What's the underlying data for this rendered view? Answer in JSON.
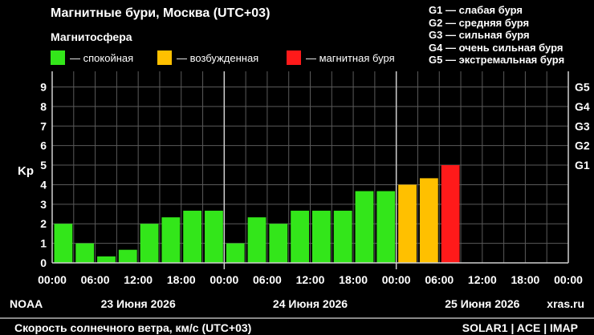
{
  "header": {
    "title": "Магнитные бури, Москва (UTC+03)",
    "subtitle": "Магнитосфера"
  },
  "legend": [
    {
      "label": "— спокойная",
      "color": "#33e61a"
    },
    {
      "label": "— возбужденная",
      "color": "#ffc000"
    },
    {
      "label": "— магнитная буря",
      "color": "#ff1a1a"
    }
  ],
  "storm_scale": [
    "G1 — слабая буря",
    "G2 — средняя буря",
    "G3 — сильная буря",
    "G4 — очень сильная буря",
    "G5 — экстремальная буря"
  ],
  "footer": {
    "left": "NOAA",
    "right": "xras.ru",
    "bottom_title": "Скорость солнечного ветра, км/с (UTC+03)",
    "bottom_right": "SOLAR1 | ACE | IMAP"
  },
  "chart_data": {
    "type": "bar",
    "ylabel": "Kp",
    "ylim": [
      0,
      9
    ],
    "yticks": [
      "0",
      "1",
      "2",
      "3",
      "4",
      "5",
      "6",
      "7",
      "8",
      "9"
    ],
    "right_ticks": [
      {
        "label": "G1",
        "kp": 5
      },
      {
        "label": "G2",
        "kp": 6
      },
      {
        "label": "G3",
        "kp": 7
      },
      {
        "label": "G4",
        "kp": 8
      },
      {
        "label": "G5",
        "kp": 9
      }
    ],
    "x_tick_labels": [
      "00:00",
      "06:00",
      "12:00",
      "18:00",
      "00:00",
      "06:00",
      "12:00",
      "18:00",
      "00:00",
      "06:00",
      "12:00",
      "18:00",
      "00:00"
    ],
    "days": [
      "23 Июня 2026",
      "24 Июня 2026",
      "25 Июня 2026"
    ],
    "values": [
      2.0,
      1.0,
      0.33,
      0.67,
      2.0,
      2.33,
      2.67,
      2.67,
      1.0,
      2.33,
      2.0,
      2.67,
      2.67,
      2.67,
      3.67,
      3.67,
      4.0,
      4.33,
      5.0
    ],
    "colors": {
      "quiet": "#33e61a",
      "active": "#ffc000",
      "storm": "#ff1a1a"
    },
    "grid": true
  }
}
